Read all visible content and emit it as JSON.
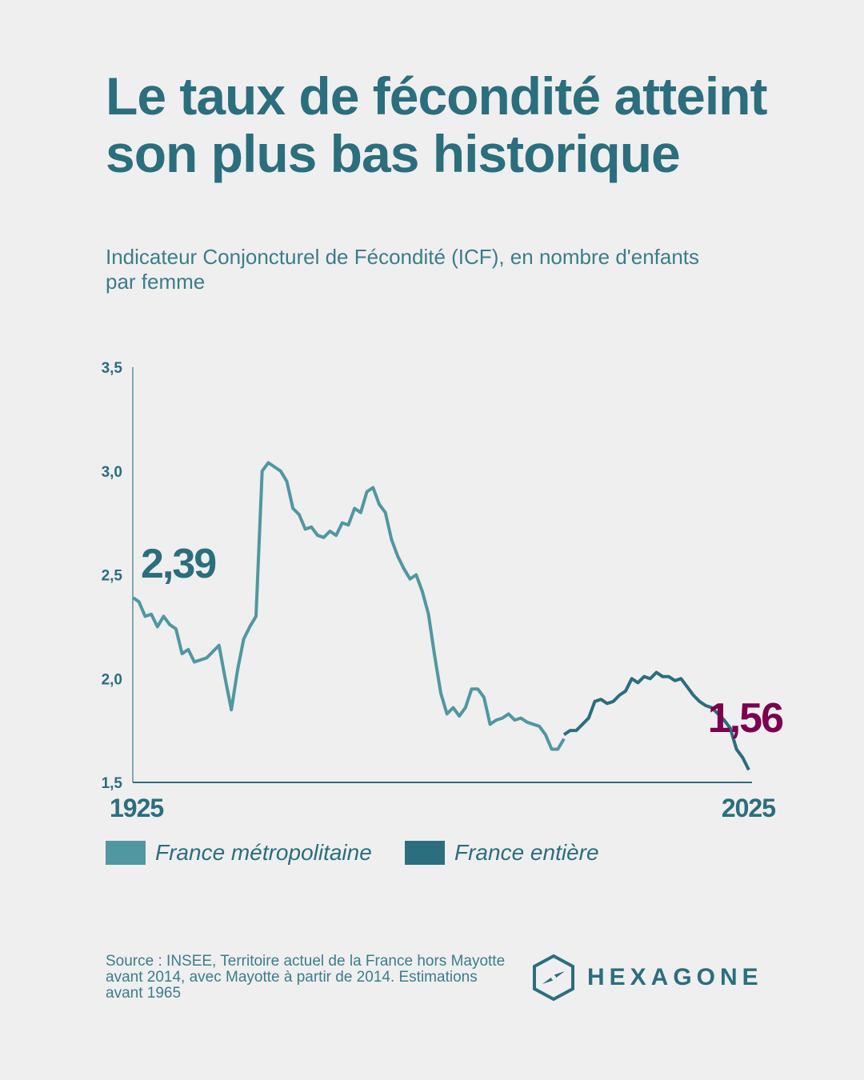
{
  "header": {
    "title": "Le taux de fécondité atteint son plus bas historique",
    "subtitle": "Indicateur Conjoncturel de Fécondité (ICF), en nombre d'enfants par femme"
  },
  "chart_data": {
    "type": "line",
    "xlim": [
      1925,
      2025
    ],
    "ylim": [
      1.5,
      3.5
    ],
    "yticks": [
      "3,5",
      "3,0",
      "2,5",
      "2,0",
      "1,5"
    ],
    "ytick_values": [
      3.5,
      3.0,
      2.5,
      2.0,
      1.5
    ],
    "x_labels": [
      "1925",
      "2025"
    ],
    "annotations": {
      "start": "2,39",
      "end": "1,56"
    },
    "colors": {
      "metro": "#5097a1",
      "entiere": "#2b6e7e",
      "end": "#7b0050"
    },
    "series": [
      {
        "name": "France métropolitaine",
        "start_year": 1925,
        "values": [
          2.39,
          2.37,
          2.3,
          2.31,
          2.25,
          2.3,
          2.26,
          2.24,
          2.12,
          2.14,
          2.08,
          2.09,
          2.1,
          2.13,
          2.16,
          2.0,
          1.85,
          2.04,
          2.19,
          2.25,
          2.3,
          3.0,
          3.04,
          3.02,
          3.0,
          2.95,
          2.82,
          2.79,
          2.72,
          2.73,
          2.69,
          2.68,
          2.71,
          2.69,
          2.75,
          2.74,
          2.82,
          2.8,
          2.9,
          2.92,
          2.84,
          2.8,
          2.67,
          2.59,
          2.53,
          2.48,
          2.5,
          2.42,
          2.31,
          2.11,
          1.93,
          1.83,
          1.86,
          1.82,
          1.86,
          1.95,
          1.95,
          1.91,
          1.78,
          1.8,
          1.81,
          1.83,
          1.8,
          1.81,
          1.79,
          1.78,
          1.77,
          1.73,
          1.66,
          1.66,
          1.71
        ]
      },
      {
        "name": "France entière",
        "start_year": 1995,
        "values": [
          1.73,
          1.75,
          1.75,
          1.78,
          1.81,
          1.89,
          1.9,
          1.88,
          1.89,
          1.92,
          1.94,
          2.0,
          1.98,
          2.01,
          2.0,
          2.03,
          2.01,
          2.01,
          1.99,
          2.0,
          1.96,
          1.92,
          1.89,
          1.87,
          1.86,
          1.83,
          1.8,
          1.76,
          1.66,
          1.62,
          1.56
        ]
      }
    ]
  },
  "legend": {
    "metro": "France métropolitaine",
    "entiere": "France entière"
  },
  "footer": {
    "source": "Source : INSEE, Territoire actuel de la France hors Mayotte avant 2014, avec Mayotte à partir de 2014. Estimations avant 1965",
    "brand": "HEXAGONE"
  }
}
